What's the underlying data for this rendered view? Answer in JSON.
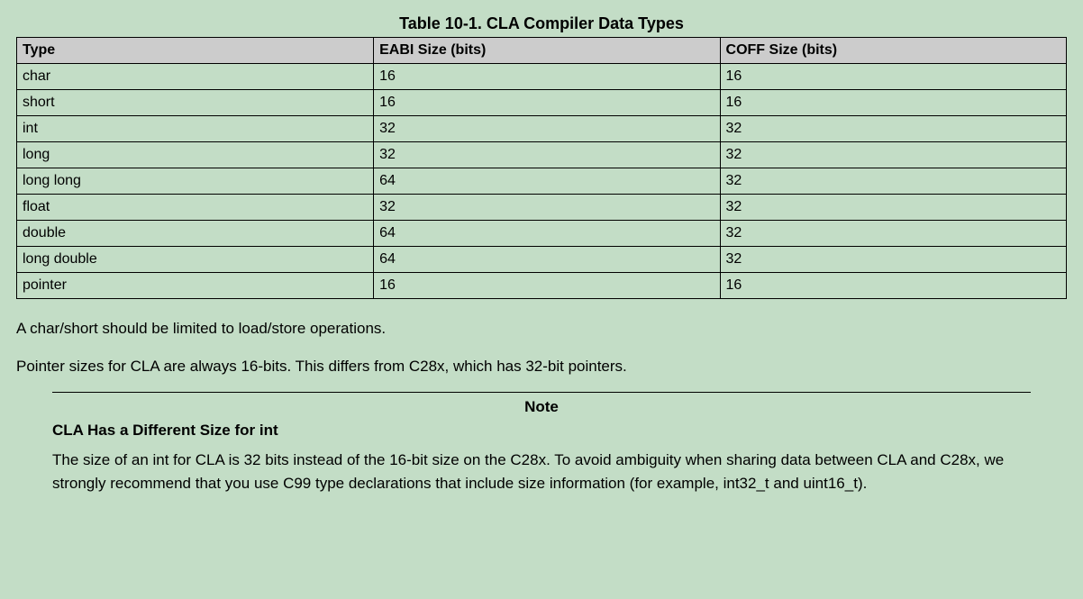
{
  "table": {
    "title": "Table 10-1. CLA Compiler Data Types",
    "columns": [
      "Type",
      "EABI Size (bits)",
      "COFF Size (bits)"
    ],
    "rows": [
      [
        "char",
        "16",
        "16"
      ],
      [
        "short",
        "16",
        "16"
      ],
      [
        "int",
        "32",
        "32"
      ],
      [
        "long",
        "32",
        "32"
      ],
      [
        "long long",
        "64",
        "32"
      ],
      [
        "float",
        "32",
        "32"
      ],
      [
        "double",
        "64",
        "32"
      ],
      [
        "long double",
        "64",
        "32"
      ],
      [
        "pointer",
        "16",
        "16"
      ]
    ]
  },
  "paragraphs": [
    "A char/short should be limited to load/store operations.",
    "Pointer sizes for CLA are always 16-bits. This differs from C28x, which has 32-bit pointers."
  ],
  "note": {
    "label": "Note",
    "heading": "CLA Has a Different Size for int",
    "body": "The size of an int for CLA is 32 bits instead of the 16-bit size on the C28x. To avoid ambiguity when sharing data between CLA and C28x, we strongly recommend that you use C99 type declarations that include size information (for example, int32_t and uint16_t)."
  }
}
